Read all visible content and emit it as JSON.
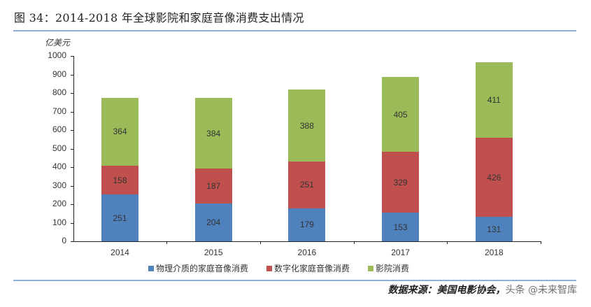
{
  "header": {
    "title": "图 34：2014-2018 年全球影院和家庭音像消费支出情况"
  },
  "footer": {
    "source": "数据来源：美国电影协会，",
    "watermark": "头条 @未来智库"
  },
  "colors": {
    "physical": "#4f81bd",
    "digital": "#c0504d",
    "cinema": "#9bbb59",
    "rule": "#8fb1d9"
  },
  "chart_data": {
    "type": "bar",
    "stacked": true,
    "title": "2014-2018 年全球影院和家庭音像消费支出情况",
    "xlabel": "",
    "ylabel": "亿美元",
    "ylim": [
      0,
      1000
    ],
    "yticks": [
      "0",
      "100",
      "200",
      "300",
      "400",
      "500",
      "600",
      "700",
      "800",
      "900",
      "1000"
    ],
    "categories": [
      "2014",
      "2015",
      "2016",
      "2017",
      "2018"
    ],
    "series": [
      {
        "name": "物理介质的家庭音像消费",
        "color": "#4f81bd",
        "values": [
          251,
          204,
          179,
          153,
          131
        ]
      },
      {
        "name": "数字化家庭音像消费",
        "color": "#c0504d",
        "values": [
          158,
          187,
          251,
          329,
          426
        ]
      },
      {
        "name": "影院消费",
        "color": "#9bbb59",
        "values": [
          364,
          384,
          388,
          405,
          411
        ]
      }
    ],
    "legend_position": "bottom",
    "grid": false,
    "data_labels": true
  }
}
